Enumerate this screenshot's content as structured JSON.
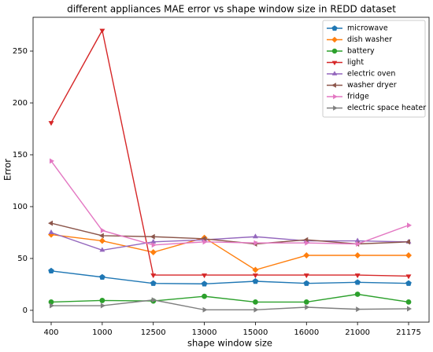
{
  "chart_data": {
    "type": "line",
    "title": "different appliances MAE error vs shape window size in REDD dataset",
    "x_label": "shape window size",
    "y_label": "Error",
    "categories": [
      "400",
      "1000",
      "12500",
      "13000",
      "15000",
      "16000",
      "21000",
      "21175"
    ],
    "ylim": [
      -11.4,
      282.6
    ],
    "yticks": [
      0,
      50,
      100,
      150,
      200,
      250
    ],
    "legend": "upper right",
    "grid": false,
    "series": [
      {
        "name": "microwave",
        "color": "#1f77b4",
        "marker": "pentagon",
        "values": [
          38,
          32,
          26,
          25.5,
          28,
          26,
          27,
          26
        ]
      },
      {
        "name": "dish washer",
        "color": "#ff7f0e",
        "marker": "diamond",
        "values": [
          73,
          67,
          56,
          70,
          39,
          53,
          53,
          53
        ]
      },
      {
        "name": "battery",
        "color": "#2ca02c",
        "marker": "circle",
        "values": [
          8,
          9.5,
          9,
          13.5,
          8,
          8,
          15.5,
          8
        ]
      },
      {
        "name": "light",
        "color": "#d62728",
        "marker": "triangle-down",
        "values": [
          181,
          270,
          34,
          34,
          34,
          34,
          34,
          33
        ]
      },
      {
        "name": "electric oven",
        "color": "#9467bd",
        "marker": "triangle-up",
        "values": [
          75,
          58,
          66,
          68,
          71,
          67,
          67,
          66
        ]
      },
      {
        "name": "washer dryer",
        "color": "#8c564b",
        "marker": "triangle-left",
        "values": [
          84,
          72,
          71,
          69,
          64,
          68,
          64,
          66
        ]
      },
      {
        "name": "fridge",
        "color": "#e377c2",
        "marker": "triangle-right",
        "values": [
          144,
          77,
          63,
          66,
          65,
          65,
          64,
          82
        ]
      },
      {
        "name": "electric space heater",
        "color": "#7f7f7f",
        "marker": "triangle-right",
        "values": [
          4.5,
          4.5,
          10,
          0.5,
          0.5,
          3,
          1,
          1.5
        ]
      }
    ]
  }
}
